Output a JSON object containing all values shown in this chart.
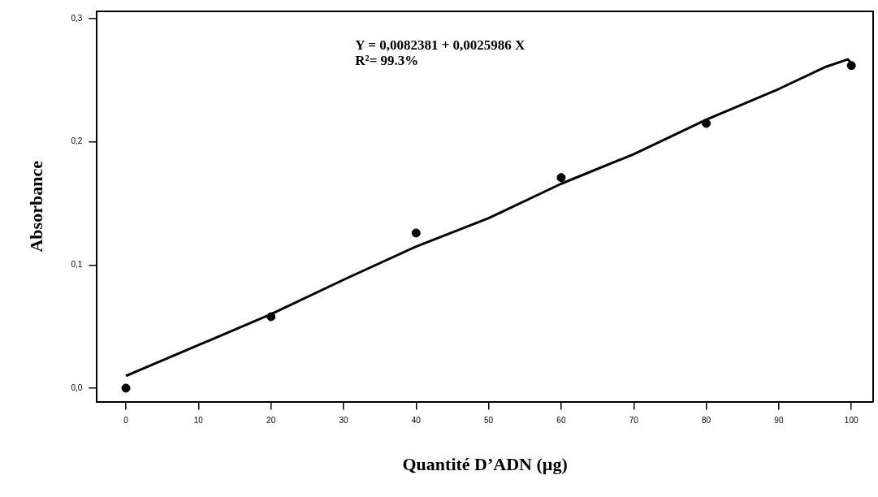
{
  "chart_data": {
    "type": "scatter",
    "xlabel": "Quantité D’ADN (µg)",
    "ylabel": "Absorbance",
    "annotations": [
      "Y = 0,0082381 + 0,0025986 X",
      "R²= 99.3%"
    ],
    "xlim": [
      -4,
      103
    ],
    "xticks": [
      0,
      10,
      20,
      30,
      40,
      50,
      60,
      70,
      80,
      90,
      100
    ],
    "ylim": [
      -0.011,
      0.306
    ],
    "yticks": [
      {
        "value": 0,
        "label": "0,0"
      },
      {
        "value": 0.1,
        "label": "0,1"
      },
      {
        "value": 0.2,
        "label": "0,2"
      },
      {
        "value": 0.3,
        "label": "0,3"
      }
    ],
    "grid": false,
    "legend": false,
    "marker": "circle",
    "series": [
      {
        "type": "scatter",
        "color": "#000000",
        "x": [
          0,
          20,
          40,
          60,
          80,
          100
        ],
        "values": [
          0.0,
          0.058,
          0.126,
          0.171,
          0.215,
          0.262
        ]
      },
      {
        "type": "line",
        "color": "#000000",
        "marker": "none",
        "line_style": "solid",
        "x": [
          0,
          10,
          20,
          30,
          40,
          50,
          60,
          70,
          80,
          90,
          96.5,
          99.5,
          100
        ],
        "values": [
          0.01,
          0.035,
          0.06,
          0.088,
          0.115,
          0.138,
          0.166,
          0.19,
          0.218,
          0.243,
          0.261,
          0.267,
          0.264
        ]
      }
    ]
  }
}
